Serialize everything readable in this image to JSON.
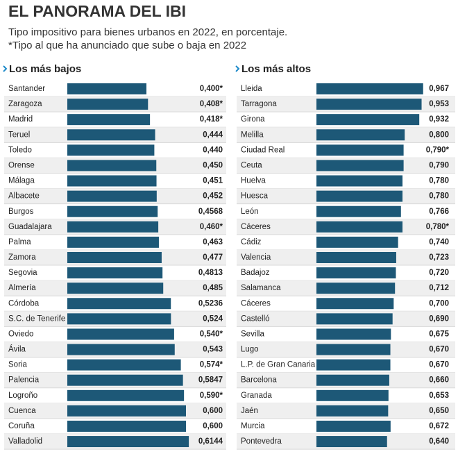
{
  "header": {
    "title": "EL PANORAMA DEL IBI",
    "subtitle": "Tipo impositivo para bienes urbanos en 2022, en porcentaje.",
    "note": "*Tipo al que ha anunciado que sube o baja en 2022"
  },
  "chart_data": [
    {
      "type": "hbar",
      "title": "Los más bajos",
      "color": "#1d5877",
      "xlim": [
        0,
        0.65
      ],
      "categories": [
        "Santander",
        "Zaragoza",
        "Madrid",
        "Teruel",
        "Toledo",
        "Orense",
        "Málaga",
        "Albacete",
        "Burgos",
        "Guadalajara",
        "Palma",
        "Zamora",
        "Segovia",
        "Almería",
        "Córdoba",
        "S.C. de Tenerife",
        "Oviedo",
        "Ávila",
        "Soria",
        "Palencia",
        "Logroño",
        "Cuenca",
        "Coruña",
        "Valladolid"
      ],
      "values": [
        0.4,
        0.408,
        0.418,
        0.444,
        0.44,
        0.45,
        0.451,
        0.452,
        0.4568,
        0.46,
        0.463,
        0.477,
        0.4813,
        0.485,
        0.5236,
        0.524,
        0.54,
        0.543,
        0.574,
        0.5847,
        0.59,
        0.6,
        0.6,
        0.6144
      ],
      "value_labels": [
        "0,400*",
        "0,408*",
        "0,418*",
        "0,444",
        "0,440",
        "0,450",
        "0,451",
        "0,452",
        "0,4568",
        "0,460*",
        "0,463",
        "0,477",
        "0,4813",
        "0,485",
        "0,5236",
        "0,524",
        "0,540*",
        "0,543",
        "0,574*",
        "0,5847",
        "0,590*",
        "0,600",
        "0,600",
        "0,6144"
      ]
    },
    {
      "type": "hbar",
      "title": "Los más altos",
      "color": "#1d5877",
      "xlim": [
        0,
        1
      ],
      "categories": [
        "Lleida",
        "Tarragona",
        "Girona",
        "Melilla",
        "Ciudad Real",
        "Ceuta",
        "Huelva",
        "Huesca",
        "León",
        "Cáceres",
        "Cádiz",
        "Valencia",
        "Badajoz",
        "Salamanca",
        "Cáceres",
        "Castelló",
        "Sevilla",
        "Lugo",
        "L.P. de Gran Canaria",
        "Barcelona",
        "Granada",
        "Jaén",
        "Murcia",
        "Pontevedra"
      ],
      "values": [
        0.967,
        0.953,
        0.932,
        0.8,
        0.79,
        0.79,
        0.78,
        0.78,
        0.766,
        0.78,
        0.74,
        0.723,
        0.72,
        0.712,
        0.7,
        0.69,
        0.675,
        0.67,
        0.67,
        0.66,
        0.653,
        0.65,
        0.672,
        0.64
      ],
      "value_labels": [
        "0,967",
        "0,953",
        "0,932",
        "0,800",
        "0,790*",
        "0,790",
        "0,780",
        "0,780",
        "0,766",
        "0,780*",
        "0,740",
        "0,723",
        "0,720",
        "0,712",
        "0,700",
        "0,690",
        "0,675",
        "0,670",
        "0,670",
        "0,660",
        "0,653",
        "0,650",
        "0,672",
        "0,640"
      ]
    }
  ]
}
